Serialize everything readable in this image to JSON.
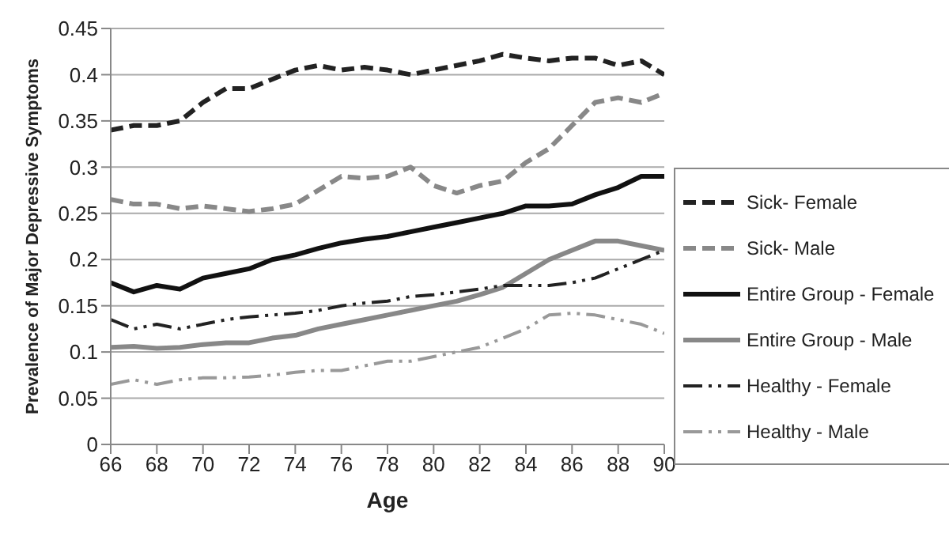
{
  "chart_data": {
    "type": "line",
    "xlabel": "Age",
    "ylabel": "Prevalence of Major Depressive Symptoms",
    "x": [
      66,
      67,
      68,
      69,
      70,
      71,
      72,
      73,
      74,
      75,
      76,
      77,
      78,
      79,
      80,
      81,
      82,
      83,
      84,
      85,
      86,
      87,
      88,
      89,
      90
    ],
    "xlim": [
      66,
      90
    ],
    "xticks": [
      66,
      68,
      70,
      72,
      74,
      76,
      78,
      80,
      82,
      84,
      86,
      88,
      90
    ],
    "ylim": [
      0,
      0.45
    ],
    "yticks": [
      0,
      0.05,
      0.1,
      0.15,
      0.2,
      0.25,
      0.3,
      0.35,
      0.4,
      0.45
    ],
    "grid": "y",
    "legend": "right",
    "marker": "none",
    "series": [
      {
        "name": "Sick- Female",
        "color": "#222222",
        "line_style": "dashed",
        "values": [
          0.34,
          0.345,
          0.345,
          0.35,
          0.37,
          0.385,
          0.385,
          0.395,
          0.405,
          0.41,
          0.405,
          0.408,
          0.405,
          0.4,
          0.405,
          0.41,
          0.415,
          0.422,
          0.418,
          0.415,
          0.418,
          0.418,
          0.41,
          0.415,
          0.4
        ]
      },
      {
        "name": "Sick- Male",
        "color": "#888888",
        "line_style": "dashed",
        "values": [
          0.265,
          0.26,
          0.26,
          0.255,
          0.258,
          0.255,
          0.252,
          0.255,
          0.26,
          0.275,
          0.29,
          0.288,
          0.29,
          0.3,
          0.28,
          0.272,
          0.28,
          0.285,
          0.305,
          0.32,
          0.345,
          0.37,
          0.375,
          0.37,
          0.38
        ]
      },
      {
        "name": "Entire Group - Female",
        "color": "#111111",
        "line_style": "solid",
        "values": [
          0.175,
          0.165,
          0.172,
          0.168,
          0.18,
          0.185,
          0.19,
          0.2,
          0.205,
          0.212,
          0.218,
          0.222,
          0.225,
          0.23,
          0.235,
          0.24,
          0.245,
          0.25,
          0.258,
          0.258,
          0.26,
          0.27,
          0.278,
          0.29,
          0.29
        ]
      },
      {
        "name": "Entire Group - Male",
        "color": "#888888",
        "line_style": "solid",
        "values": [
          0.105,
          0.106,
          0.104,
          0.105,
          0.108,
          0.11,
          0.11,
          0.115,
          0.118,
          0.125,
          0.13,
          0.135,
          0.14,
          0.145,
          0.15,
          0.155,
          0.162,
          0.17,
          0.185,
          0.2,
          0.21,
          0.22,
          0.22,
          0.215,
          0.21
        ]
      },
      {
        "name": "Healthy - Female",
        "color": "#222222",
        "line_style": "dotted",
        "values": [
          0.135,
          0.125,
          0.13,
          0.125,
          0.13,
          0.135,
          0.138,
          0.14,
          0.142,
          0.145,
          0.15,
          0.153,
          0.155,
          0.16,
          0.162,
          0.165,
          0.168,
          0.172,
          0.172,
          0.172,
          0.175,
          0.18,
          0.19,
          0.2,
          0.21
        ]
      },
      {
        "name": "Healthy - Male",
        "color": "#999999",
        "line_style": "dotted",
        "values": [
          0.065,
          0.07,
          0.065,
          0.07,
          0.072,
          0.072,
          0.073,
          0.075,
          0.078,
          0.08,
          0.08,
          0.085,
          0.09,
          0.09,
          0.095,
          0.1,
          0.105,
          0.115,
          0.125,
          0.14,
          0.142,
          0.14,
          0.135,
          0.13,
          0.12
        ]
      }
    ]
  }
}
